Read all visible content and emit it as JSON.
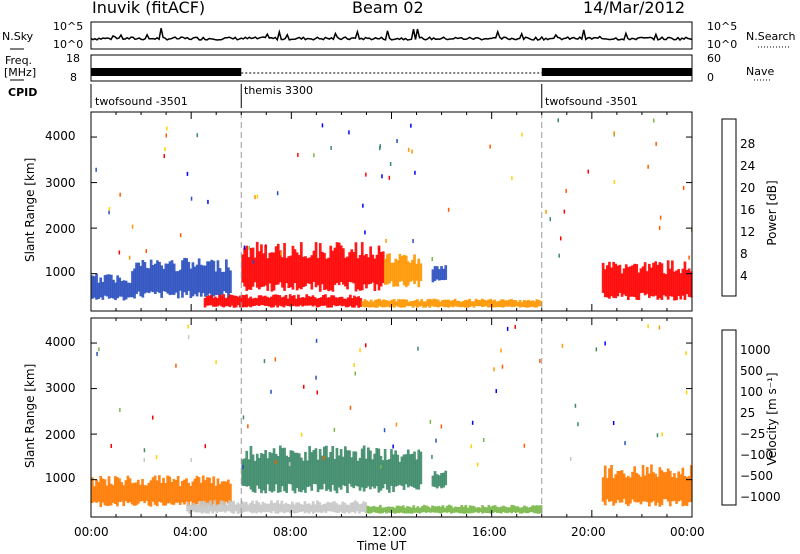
{
  "header": {
    "station": "Inuvik (fitACF)",
    "beam": "Beam 02",
    "date": "14/Mar/2012"
  },
  "summary": {
    "nsky_label": "N.Sky",
    "nsky_ticks": [
      "10^5",
      "10^0"
    ],
    "nsearch_label": "N.Search",
    "freq_label": "Freq.",
    "freq_unit": "[MHz]",
    "freq_ticks": [
      "18",
      "8"
    ],
    "nave_ticks": [
      "60",
      "0"
    ],
    "nave_label": "Nave",
    "cpid_label": "CPID",
    "cpid_segments": [
      {
        "name": "twofsound -3501",
        "start_h": 0,
        "end_h": 6
      },
      {
        "name": "themis 3300",
        "start_h": 6,
        "end_h": 18
      },
      {
        "name": "twofsound -3501",
        "start_h": 18,
        "end_h": 24
      }
    ]
  },
  "chart_data": [
    {
      "type": "heatmap",
      "title": "Power",
      "ylabel": "Slant Range [km]",
      "ylim": [
        180,
        4550
      ],
      "yticks": [
        "4000",
        "3000",
        "2000",
        "1000"
      ],
      "xlim": [
        "00:00",
        "24:00"
      ],
      "colorbar": {
        "label": "Power [dB]",
        "ticks": [
          "28",
          "24",
          "20",
          "16",
          "12",
          "8",
          "4"
        ],
        "colors": [
          "#0000ff",
          "#2a4fbf",
          "#3c8a68",
          "#7ab84a",
          "#ffd200",
          "#ff9600",
          "#ff5a00",
          "#ff0000"
        ]
      },
      "regions": [
        {
          "t0": 0.0,
          "t1": 1.6,
          "r0": 400,
          "r1": 1000,
          "level": "low"
        },
        {
          "t0": 1.6,
          "t1": 5.6,
          "r0": 450,
          "r1": 1350,
          "level": "low"
        },
        {
          "t0": 6.0,
          "t1": 11.7,
          "r0": 600,
          "r1": 1700,
          "level": "high"
        },
        {
          "t0": 11.7,
          "t1": 13.2,
          "r0": 700,
          "r1": 1450,
          "level": "mid"
        },
        {
          "t0": 13.6,
          "t1": 14.2,
          "r0": 800,
          "r1": 1200,
          "level": "low"
        },
        {
          "t0": 4.5,
          "t1": 10.8,
          "r0": 250,
          "r1": 550,
          "level": "high"
        },
        {
          "t0": 10.8,
          "t1": 18.0,
          "r0": 250,
          "r1": 450,
          "level": "mid"
        },
        {
          "t0": 20.4,
          "t1": 24.0,
          "r0": 400,
          "r1": 1300,
          "level": "high"
        }
      ],
      "color_by_level": {
        "low": "#2a4fbf",
        "mid": "#ff9600",
        "high": "#ff0000"
      }
    },
    {
      "type": "heatmap",
      "title": "Velocity",
      "ylabel": "Slant Range [km]",
      "ylim": [
        180,
        4550
      ],
      "yticks": [
        "4000",
        "3000",
        "2000",
        "1000"
      ],
      "xlabel": "Time UT",
      "xticks": [
        "00:00",
        "04:00",
        "08:00",
        "12:00",
        "16:00",
        "20:00",
        "00:00"
      ],
      "colorbar": {
        "label": "Velocity [m s⁻¹]",
        "ticks": [
          "1000",
          "500",
          "100",
          "25",
          "−25",
          "−100",
          "−500",
          "−1000"
        ],
        "colors": [
          "#ff0000",
          "#ff5a00",
          "#ff9600",
          "#ffd200",
          "#c8c8c8",
          "#7ab84a",
          "#3c8a68",
          "#2a4fbf",
          "#0000ff"
        ]
      },
      "regions": [
        {
          "t0": 0.0,
          "t1": 5.6,
          "r0": 400,
          "r1": 1100,
          "level": "away"
        },
        {
          "t0": 6.0,
          "t1": 13.2,
          "r0": 700,
          "r1": 1750,
          "level": "toward"
        },
        {
          "t0": 13.6,
          "t1": 14.2,
          "r0": 800,
          "r1": 1200,
          "level": "toward"
        },
        {
          "t0": 3.8,
          "t1": 11.0,
          "r0": 250,
          "r1": 550,
          "level": "zero"
        },
        {
          "t0": 11.0,
          "t1": 18.0,
          "r0": 250,
          "r1": 450,
          "level": "low"
        },
        {
          "t0": 20.4,
          "t1": 24.0,
          "r0": 400,
          "r1": 1350,
          "level": "away"
        }
      ],
      "color_by_level": {
        "away": "#ff7a00",
        "toward": "#3c8a68",
        "zero": "#c8c8c8",
        "low": "#7ab84a"
      }
    }
  ]
}
